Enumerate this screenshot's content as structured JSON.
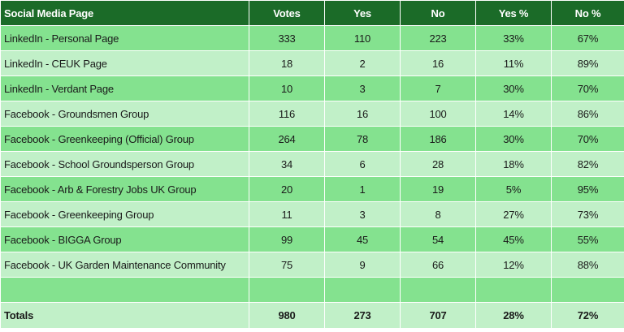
{
  "table": {
    "headers": [
      "Social Media Page",
      "Votes",
      "Yes",
      "No",
      "Yes %",
      "No %"
    ],
    "rows": [
      {
        "page": "LinkedIn - Personal Page",
        "votes": "333",
        "yes": "110",
        "no": "223",
        "yes_pct": "33%",
        "no_pct": "67%"
      },
      {
        "page": "LinkedIn - CEUK Page",
        "votes": "18",
        "yes": "2",
        "no": "16",
        "yes_pct": "11%",
        "no_pct": "89%"
      },
      {
        "page": "LinkedIn - Verdant Page",
        "votes": "10",
        "yes": "3",
        "no": "7",
        "yes_pct": "30%",
        "no_pct": "70%"
      },
      {
        "page": "Facebook - Groundsmen Group",
        "votes": "116",
        "yes": "16",
        "no": "100",
        "yes_pct": "14%",
        "no_pct": "86%"
      },
      {
        "page": "Facebook - Greenkeeping (Official) Group",
        "votes": "264",
        "yes": "78",
        "no": "186",
        "yes_pct": "30%",
        "no_pct": "70%"
      },
      {
        "page": "Facebook - School Groundsperson Group",
        "votes": "34",
        "yes": "6",
        "no": "28",
        "yes_pct": "18%",
        "no_pct": "82%"
      },
      {
        "page": "Facebook - Arb & Forestry Jobs UK Group",
        "votes": "20",
        "yes": "1",
        "no": "19",
        "yes_pct": "5%",
        "no_pct": "95%"
      },
      {
        "page": "Facebook - Greenkeeping Group",
        "votes": "11",
        "yes": "3",
        "no": "8",
        "yes_pct": "27%",
        "no_pct": "73%"
      },
      {
        "page": "Facebook - BIGGA Group",
        "votes": "99",
        "yes": "45",
        "no": "54",
        "yes_pct": "45%",
        "no_pct": "55%"
      },
      {
        "page": "Facebook - UK Garden Maintenance Community",
        "votes": "75",
        "yes": "9",
        "no": "66",
        "yes_pct": "12%",
        "no_pct": "88%"
      }
    ],
    "totals": {
      "page": "Totals",
      "votes": "980",
      "yes": "273",
      "no": "707",
      "yes_pct": "28%",
      "no_pct": "72%"
    }
  },
  "colors": {
    "header_bg": "#1b6b28",
    "header_text": "#ffffff",
    "row_dark": "#84e28f",
    "row_light": "#c1f0c8",
    "grid": "#ffffff"
  }
}
